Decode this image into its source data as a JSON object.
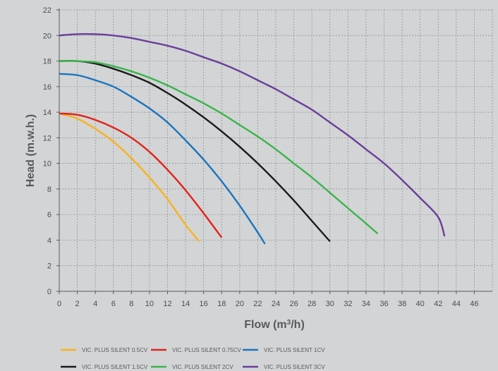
{
  "chart_data": {
    "type": "line",
    "xlabel_main": "Flow (m",
    "xlabel_sup": "3",
    "xlabel_end": "/h)",
    "ylabel": "Head (m.w.h.)",
    "xlim": [
      0,
      48
    ],
    "ylim": [
      0,
      22
    ],
    "x_ticks": [
      0,
      2,
      4,
      6,
      8,
      10,
      12,
      14,
      16,
      18,
      20,
      22,
      24,
      26,
      28,
      30,
      32,
      34,
      36,
      38,
      40,
      42,
      44,
      46
    ],
    "y_ticks": [
      0,
      2,
      4,
      6,
      8,
      10,
      12,
      14,
      16,
      18,
      20,
      22
    ],
    "grid": "dashed",
    "legend_position": "bottom",
    "series": [
      {
        "name": "VIC. PLUS SILENT 0.5CV",
        "color": "#f9b21b",
        "points": [
          [
            0,
            13.9
          ],
          [
            2,
            13.5
          ],
          [
            4,
            12.7
          ],
          [
            6,
            11.7
          ],
          [
            8,
            10.4
          ],
          [
            10,
            8.9
          ],
          [
            12,
            7.2
          ],
          [
            14,
            5.2
          ],
          [
            15.5,
            3.9
          ]
        ]
      },
      {
        "name": "VIC. PLUS SILENT 0.75CV",
        "color": "#e2231a",
        "points": [
          [
            0,
            13.9
          ],
          [
            2,
            13.8
          ],
          [
            4,
            13.4
          ],
          [
            6,
            12.8
          ],
          [
            8,
            12.0
          ],
          [
            10,
            10.9
          ],
          [
            12,
            9.5
          ],
          [
            14,
            7.9
          ],
          [
            16,
            6.1
          ],
          [
            18,
            4.2
          ]
        ]
      },
      {
        "name": "VIC. PLUS SILENT 1CV",
        "color": "#1b75bc",
        "points": [
          [
            0,
            17.0
          ],
          [
            2,
            16.9
          ],
          [
            4,
            16.5
          ],
          [
            6,
            16.0
          ],
          [
            8,
            15.2
          ],
          [
            10,
            14.3
          ],
          [
            12,
            13.2
          ],
          [
            14,
            11.8
          ],
          [
            16,
            10.3
          ],
          [
            18,
            8.6
          ],
          [
            20,
            6.7
          ],
          [
            22,
            4.6
          ],
          [
            22.8,
            3.7
          ]
        ]
      },
      {
        "name": "VIC. PLUS SILENT 1.5CV",
        "color": "#1a1a1a",
        "points": [
          [
            0,
            18.0
          ],
          [
            2,
            18.0
          ],
          [
            4,
            17.8
          ],
          [
            6,
            17.4
          ],
          [
            8,
            16.9
          ],
          [
            10,
            16.3
          ],
          [
            12,
            15.5
          ],
          [
            14,
            14.6
          ],
          [
            16,
            13.6
          ],
          [
            18,
            12.5
          ],
          [
            20,
            11.3
          ],
          [
            22,
            10.0
          ],
          [
            24,
            8.6
          ],
          [
            26,
            7.1
          ],
          [
            28,
            5.5
          ],
          [
            30,
            3.9
          ]
        ]
      },
      {
        "name": "VIC. PLUS SILENT 2CV",
        "color": "#39b54a",
        "points": [
          [
            0,
            18.0
          ],
          [
            2,
            18.0
          ],
          [
            4,
            17.9
          ],
          [
            6,
            17.6
          ],
          [
            8,
            17.2
          ],
          [
            10,
            16.7
          ],
          [
            12,
            16.1
          ],
          [
            14,
            15.4
          ],
          [
            16,
            14.7
          ],
          [
            18,
            13.9
          ],
          [
            20,
            13.0
          ],
          [
            22,
            12.1
          ],
          [
            24,
            11.1
          ],
          [
            26,
            10.0
          ],
          [
            28,
            8.9
          ],
          [
            30,
            7.7
          ],
          [
            32,
            6.5
          ],
          [
            34,
            5.3
          ],
          [
            35.3,
            4.5
          ]
        ]
      },
      {
        "name": "VIC. PLUS SILENT 3CV",
        "color": "#6a3e9a",
        "points": [
          [
            0,
            20.0
          ],
          [
            2,
            20.1
          ],
          [
            4,
            20.1
          ],
          [
            6,
            20.0
          ],
          [
            8,
            19.8
          ],
          [
            10,
            19.5
          ],
          [
            12,
            19.2
          ],
          [
            14,
            18.8
          ],
          [
            16,
            18.3
          ],
          [
            18,
            17.8
          ],
          [
            20,
            17.2
          ],
          [
            22,
            16.5
          ],
          [
            24,
            15.8
          ],
          [
            26,
            15.0
          ],
          [
            28,
            14.2
          ],
          [
            30,
            13.2
          ],
          [
            32,
            12.2
          ],
          [
            34,
            11.1
          ],
          [
            36,
            10.0
          ],
          [
            38,
            8.7
          ],
          [
            40,
            7.3
          ],
          [
            42,
            5.8
          ],
          [
            42.7,
            4.3
          ]
        ]
      }
    ]
  }
}
